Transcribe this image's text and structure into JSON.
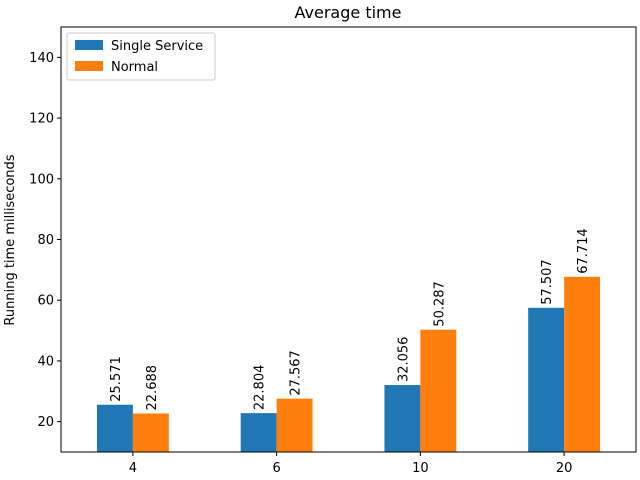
{
  "chart_data": {
    "type": "bar",
    "title": "Average time",
    "xlabel": "",
    "ylabel": "Running time milliseconds",
    "categories": [
      "4",
      "6",
      "10",
      "20"
    ],
    "series": [
      {
        "name": "Single Service",
        "color": "#1f77b4",
        "values": [
          25.571,
          22.804,
          32.056,
          57.507
        ],
        "labels": [
          "25.571",
          "22.804",
          "32.056",
          "57.507"
        ]
      },
      {
        "name": "Normal",
        "color": "#ff7f0e",
        "values": [
          22.688,
          27.567,
          50.287,
          67.714
        ],
        "labels": [
          "22.688",
          "27.567",
          "50.287",
          "67.714"
        ]
      }
    ],
    "ylim": [
      10,
      150
    ],
    "yticks": [
      20,
      40,
      60,
      80,
      100,
      120,
      140
    ],
    "legend_position": "top-left",
    "grid": false
  }
}
